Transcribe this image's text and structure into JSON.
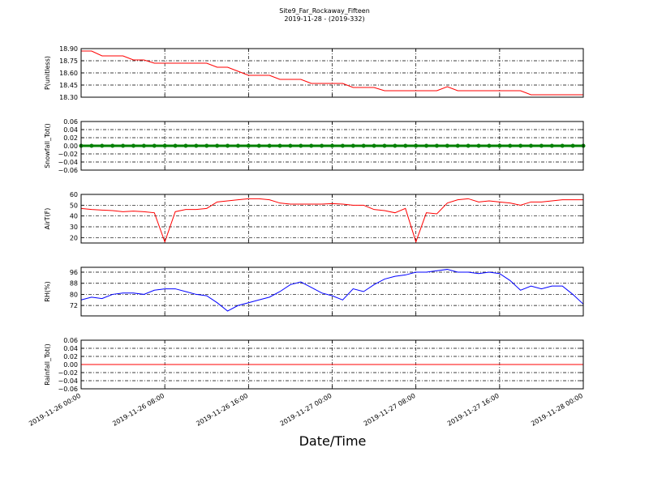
{
  "chart_data": [
    {
      "type": "line",
      "title": "Site9_Far_Rockaway_Fifteen",
      "subtitle": "2019-11-28 - (2019-332)",
      "ylabel": "P(unitless)",
      "x": [
        "2019-11-26 00:00",
        "2019-11-26 01:00",
        "2019-11-26 02:00",
        "2019-11-26 03:00",
        "2019-11-26 04:00",
        "2019-11-26 05:00",
        "2019-11-26 06:00",
        "2019-11-26 07:00",
        "2019-11-26 08:00",
        "2019-11-26 09:00",
        "2019-11-26 10:00",
        "2019-11-26 11:00",
        "2019-11-26 12:00",
        "2019-11-26 13:00",
        "2019-11-26 14:00",
        "2019-11-26 15:00",
        "2019-11-26 16:00",
        "2019-11-26 17:00",
        "2019-11-26 18:00",
        "2019-11-26 19:00",
        "2019-11-26 20:00",
        "2019-11-26 21:00",
        "2019-11-26 22:00",
        "2019-11-26 23:00",
        "2019-11-27 00:00",
        "2019-11-27 01:00",
        "2019-11-27 02:00",
        "2019-11-27 03:00",
        "2019-11-27 04:00",
        "2019-11-27 05:00",
        "2019-11-27 06:00",
        "2019-11-27 07:00",
        "2019-11-27 08:00",
        "2019-11-27 09:00",
        "2019-11-27 10:00",
        "2019-11-27 11:00",
        "2019-11-27 12:00",
        "2019-11-27 13:00",
        "2019-11-27 14:00",
        "2019-11-27 15:00",
        "2019-11-27 16:00",
        "2019-11-27 17:00",
        "2019-11-27 18:00",
        "2019-11-27 19:00",
        "2019-11-27 20:00",
        "2019-11-27 21:00",
        "2019-11-27 22:00",
        "2019-11-27 23:00",
        "2019-11-28 00:00"
      ],
      "xlim": [
        "2019-11-26 00:00",
        "2019-11-28 00:00"
      ],
      "series": [
        {
          "color": "#ff0000",
          "values": [
            18.87,
            18.87,
            18.81,
            18.81,
            18.81,
            18.76,
            18.76,
            18.72,
            18.72,
            18.72,
            18.72,
            18.72,
            18.72,
            18.67,
            18.67,
            18.62,
            18.57,
            18.57,
            18.57,
            18.52,
            18.52,
            18.52,
            18.47,
            18.47,
            18.47,
            18.47,
            18.42,
            18.42,
            18.42,
            18.38,
            18.38,
            18.38,
            18.38,
            18.38,
            18.38,
            18.43,
            18.38,
            18.38,
            18.38,
            18.38,
            18.38,
            18.38,
            18.38,
            18.33,
            18.33,
            18.33,
            18.33,
            18.33,
            18.33
          ]
        }
      ],
      "ylim": [
        18.3,
        18.9
      ],
      "yticks": [
        {
          "value": 18.3,
          "label": "18.30"
        },
        {
          "value": 18.45,
          "label": "18.45"
        },
        {
          "value": 18.6,
          "label": "18.60"
        },
        {
          "value": 18.75,
          "label": "18.75"
        },
        {
          "value": 18.9,
          "label": "18.90"
        }
      ],
      "grid": true
    },
    {
      "type": "line",
      "ylabel": "Snowfall_Tot()",
      "x": [
        "2019-11-26 00:00",
        "2019-11-26 01:00",
        "2019-11-26 02:00",
        "2019-11-26 03:00",
        "2019-11-26 04:00",
        "2019-11-26 05:00",
        "2019-11-26 06:00",
        "2019-11-26 07:00",
        "2019-11-26 08:00",
        "2019-11-26 09:00",
        "2019-11-26 10:00",
        "2019-11-26 11:00",
        "2019-11-26 12:00",
        "2019-11-26 13:00",
        "2019-11-26 14:00",
        "2019-11-26 15:00",
        "2019-11-26 16:00",
        "2019-11-26 17:00",
        "2019-11-26 18:00",
        "2019-11-26 19:00",
        "2019-11-26 20:00",
        "2019-11-26 21:00",
        "2019-11-26 22:00",
        "2019-11-26 23:00",
        "2019-11-27 00:00",
        "2019-11-27 01:00",
        "2019-11-27 02:00",
        "2019-11-27 03:00",
        "2019-11-27 04:00",
        "2019-11-27 05:00",
        "2019-11-27 06:00",
        "2019-11-27 07:00",
        "2019-11-27 08:00",
        "2019-11-27 09:00",
        "2019-11-27 10:00",
        "2019-11-27 11:00",
        "2019-11-27 12:00",
        "2019-11-27 13:00",
        "2019-11-27 14:00",
        "2019-11-27 15:00",
        "2019-11-27 16:00",
        "2019-11-27 17:00",
        "2019-11-27 18:00",
        "2019-11-27 19:00",
        "2019-11-27 20:00",
        "2019-11-27 21:00",
        "2019-11-27 22:00",
        "2019-11-27 23:00",
        "2019-11-28 00:00"
      ],
      "xlim": [
        "2019-11-26 00:00",
        "2019-11-28 00:00"
      ],
      "series": [
        {
          "color": "#008000",
          "markers": true,
          "values": [
            0,
            0,
            0,
            0,
            0,
            0,
            0,
            0,
            0,
            0,
            0,
            0,
            0,
            0,
            0,
            0,
            0,
            0,
            0,
            0,
            0,
            0,
            0,
            0,
            0,
            0,
            0,
            0,
            0,
            0,
            0,
            0,
            0,
            0,
            0,
            0,
            0,
            0,
            0,
            0,
            0,
            0,
            0,
            0,
            0,
            0,
            0,
            0,
            0
          ]
        }
      ],
      "ylim": [
        -0.06,
        0.06
      ],
      "yticks": [
        {
          "value": -0.06,
          "label": "−0.06"
        },
        {
          "value": -0.04,
          "label": "−0.04"
        },
        {
          "value": -0.02,
          "label": "−0.02"
        },
        {
          "value": 0,
          "label": "0.00"
        },
        {
          "value": 0.02,
          "label": "0.02"
        },
        {
          "value": 0.04,
          "label": "0.04"
        },
        {
          "value": 0.06,
          "label": "0.06"
        }
      ],
      "grid": true
    },
    {
      "type": "line",
      "ylabel": "AirT(F)",
      "x": [
        "2019-11-26 00:00",
        "2019-11-26 01:00",
        "2019-11-26 02:00",
        "2019-11-26 03:00",
        "2019-11-26 04:00",
        "2019-11-26 05:00",
        "2019-11-26 06:00",
        "2019-11-26 07:00",
        "2019-11-26 08:00",
        "2019-11-26 09:00",
        "2019-11-26 10:00",
        "2019-11-26 11:00",
        "2019-11-26 12:00",
        "2019-11-26 13:00",
        "2019-11-26 14:00",
        "2019-11-26 15:00",
        "2019-11-26 16:00",
        "2019-11-26 17:00",
        "2019-11-26 18:00",
        "2019-11-26 19:00",
        "2019-11-26 20:00",
        "2019-11-26 21:00",
        "2019-11-26 22:00",
        "2019-11-26 23:00",
        "2019-11-27 00:00",
        "2019-11-27 01:00",
        "2019-11-27 02:00",
        "2019-11-27 03:00",
        "2019-11-27 04:00",
        "2019-11-27 05:00",
        "2019-11-27 06:00",
        "2019-11-27 07:00",
        "2019-11-27 08:00",
        "2019-11-27 09:00",
        "2019-11-27 10:00",
        "2019-11-27 11:00",
        "2019-11-27 12:00",
        "2019-11-27 13:00",
        "2019-11-27 14:00",
        "2019-11-27 15:00",
        "2019-11-27 16:00",
        "2019-11-27 17:00",
        "2019-11-27 18:00",
        "2019-11-27 19:00",
        "2019-11-27 20:00",
        "2019-11-27 21:00",
        "2019-11-27 22:00",
        "2019-11-27 23:00",
        "2019-11-28 00:00"
      ],
      "xlim": [
        "2019-11-26 00:00",
        "2019-11-28 00:00"
      ],
      "series": [
        {
          "color": "#ff0000",
          "values": [
            47,
            46,
            45.5,
            45,
            44,
            44.5,
            44,
            43,
            16,
            44,
            46,
            46,
            47,
            53,
            54,
            55,
            56,
            56,
            55,
            52,
            51,
            51,
            51,
            51,
            51.5,
            51,
            50,
            50,
            46,
            45,
            43,
            47,
            16,
            43,
            42,
            52,
            55,
            56,
            53,
            54,
            53,
            52,
            50,
            53,
            53,
            54,
            55,
            55,
            55
          ]
        }
      ],
      "ylim": [
        15,
        60
      ],
      "yticks": [
        20,
        30,
        40,
        50,
        60
      ],
      "grid": true
    },
    {
      "type": "line",
      "ylabel": "RH(%)",
      "x": [
        "2019-11-26 00:00",
        "2019-11-26 01:00",
        "2019-11-26 02:00",
        "2019-11-26 03:00",
        "2019-11-26 04:00",
        "2019-11-26 05:00",
        "2019-11-26 06:00",
        "2019-11-26 07:00",
        "2019-11-26 08:00",
        "2019-11-26 09:00",
        "2019-11-26 10:00",
        "2019-11-26 11:00",
        "2019-11-26 12:00",
        "2019-11-26 13:00",
        "2019-11-26 14:00",
        "2019-11-26 15:00",
        "2019-11-26 16:00",
        "2019-11-26 17:00",
        "2019-11-26 18:00",
        "2019-11-26 19:00",
        "2019-11-26 20:00",
        "2019-11-26 21:00",
        "2019-11-26 22:00",
        "2019-11-26 23:00",
        "2019-11-27 00:00",
        "2019-11-27 01:00",
        "2019-11-27 02:00",
        "2019-11-27 03:00",
        "2019-11-27 04:00",
        "2019-11-27 05:00",
        "2019-11-27 06:00",
        "2019-11-27 07:00",
        "2019-11-27 08:00",
        "2019-11-27 09:00",
        "2019-11-27 10:00",
        "2019-11-27 11:00",
        "2019-11-27 12:00",
        "2019-11-27 13:00",
        "2019-11-27 14:00",
        "2019-11-27 15:00",
        "2019-11-27 16:00",
        "2019-11-27 17:00",
        "2019-11-27 18:00",
        "2019-11-27 19:00",
        "2019-11-27 20:00",
        "2019-11-27 21:00",
        "2019-11-27 22:00",
        "2019-11-27 23:00",
        "2019-11-28 00:00"
      ],
      "xlim": [
        "2019-11-26 00:00",
        "2019-11-28 00:00"
      ],
      "series": [
        {
          "color": "#0000ff",
          "values": [
            76,
            78,
            77,
            80,
            81,
            81,
            80,
            83,
            84,
            84,
            82,
            80,
            79,
            74,
            68,
            72,
            74,
            76,
            78,
            82,
            87,
            89,
            85,
            81,
            79,
            76,
            84,
            82,
            87,
            91,
            93,
            94,
            96,
            96,
            97,
            98,
            96,
            96,
            95,
            96,
            95,
            90,
            83,
            86,
            84,
            86,
            86,
            80,
            73
          ]
        }
      ],
      "ylim": [
        64.5,
        99.5
      ],
      "yticks": [
        72,
        80,
        88,
        96
      ],
      "grid": true
    },
    {
      "type": "line",
      "ylabel": "Rainfall_Tot()",
      "xlabel": "Date/Time",
      "x": [
        "2019-11-26 00:00",
        "2019-11-26 01:00",
        "2019-11-26 02:00",
        "2019-11-26 03:00",
        "2019-11-26 04:00",
        "2019-11-26 05:00",
        "2019-11-26 06:00",
        "2019-11-26 07:00",
        "2019-11-26 08:00",
        "2019-11-26 09:00",
        "2019-11-26 10:00",
        "2019-11-26 11:00",
        "2019-11-26 12:00",
        "2019-11-26 13:00",
        "2019-11-26 14:00",
        "2019-11-26 15:00",
        "2019-11-26 16:00",
        "2019-11-26 17:00",
        "2019-11-26 18:00",
        "2019-11-26 19:00",
        "2019-11-26 20:00",
        "2019-11-26 21:00",
        "2019-11-26 22:00",
        "2019-11-26 23:00",
        "2019-11-27 00:00",
        "2019-11-27 01:00",
        "2019-11-27 02:00",
        "2019-11-27 03:00",
        "2019-11-27 04:00",
        "2019-11-27 05:00",
        "2019-11-27 06:00",
        "2019-11-27 07:00",
        "2019-11-27 08:00",
        "2019-11-27 09:00",
        "2019-11-27 10:00",
        "2019-11-27 11:00",
        "2019-11-27 12:00",
        "2019-11-27 13:00",
        "2019-11-27 14:00",
        "2019-11-27 15:00",
        "2019-11-27 16:00",
        "2019-11-27 17:00",
        "2019-11-27 18:00",
        "2019-11-27 19:00",
        "2019-11-27 20:00",
        "2019-11-27 21:00",
        "2019-11-27 22:00",
        "2019-11-27 23:00",
        "2019-11-28 00:00"
      ],
      "xlim": [
        "2019-11-26 00:00",
        "2019-11-28 00:00"
      ],
      "xticks": [
        "2019-11-26 00:00",
        "2019-11-26 08:00",
        "2019-11-26 16:00",
        "2019-11-27 00:00",
        "2019-11-27 08:00",
        "2019-11-27 16:00",
        "2019-11-28 00:00"
      ],
      "series": [
        {
          "color": "#ff0000",
          "values": [
            0,
            0,
            0,
            0,
            0,
            0,
            0,
            0,
            0,
            0,
            0,
            0,
            0,
            0,
            0,
            0,
            0,
            0,
            0,
            0,
            0,
            0,
            0,
            0,
            0,
            0,
            0,
            0,
            0,
            0,
            0,
            0,
            0,
            0,
            0,
            0,
            0,
            0,
            0,
            0,
            0,
            0,
            0,
            0,
            0,
            0,
            0,
            0,
            0
          ]
        }
      ],
      "ylim": [
        -0.06,
        0.06
      ],
      "yticks": [
        {
          "value": -0.06,
          "label": "−0.06"
        },
        {
          "value": -0.04,
          "label": "−0.04"
        },
        {
          "value": -0.02,
          "label": "−0.02"
        },
        {
          "value": 0,
          "label": "0.00"
        },
        {
          "value": 0.02,
          "label": "0.02"
        },
        {
          "value": 0.04,
          "label": "0.04"
        },
        {
          "value": 0.06,
          "label": "0.06"
        }
      ],
      "grid": true
    }
  ]
}
